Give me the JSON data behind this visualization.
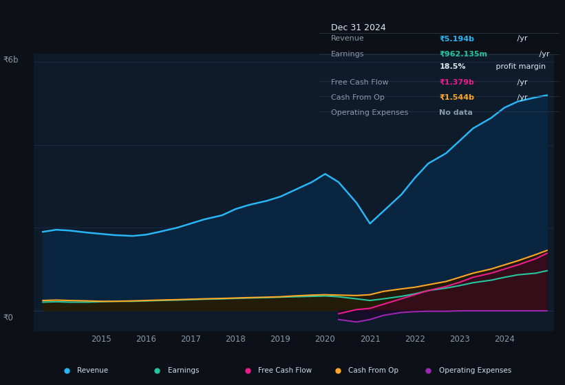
{
  "bg_color": "#0d1117",
  "plot_bg_color": "#0d1b2a",
  "grid_color": "#1e3050",
  "text_color": "#8899aa",
  "label_color": "#ccddee",
  "years": [
    2013.7,
    2014.0,
    2014.3,
    2014.7,
    2015.0,
    2015.3,
    2015.7,
    2016.0,
    2016.3,
    2016.7,
    2017.0,
    2017.3,
    2017.7,
    2018.0,
    2018.3,
    2018.7,
    2019.0,
    2019.3,
    2019.7,
    2020.0,
    2020.3,
    2020.7,
    2021.0,
    2021.3,
    2021.7,
    2022.0,
    2022.3,
    2022.7,
    2023.0,
    2023.3,
    2023.7,
    2024.0,
    2024.3,
    2024.7,
    2024.95
  ],
  "revenue": [
    1.9,
    1.95,
    1.93,
    1.88,
    1.85,
    1.82,
    1.8,
    1.83,
    1.9,
    2.0,
    2.1,
    2.2,
    2.3,
    2.45,
    2.55,
    2.65,
    2.75,
    2.9,
    3.1,
    3.3,
    3.1,
    2.6,
    2.1,
    2.4,
    2.8,
    3.2,
    3.55,
    3.8,
    4.1,
    4.4,
    4.65,
    4.9,
    5.05,
    5.15,
    5.2
  ],
  "earnings": [
    0.2,
    0.21,
    0.2,
    0.2,
    0.21,
    0.22,
    0.22,
    0.23,
    0.24,
    0.25,
    0.26,
    0.27,
    0.28,
    0.29,
    0.3,
    0.31,
    0.32,
    0.33,
    0.34,
    0.35,
    0.33,
    0.28,
    0.24,
    0.28,
    0.34,
    0.4,
    0.48,
    0.54,
    0.6,
    0.67,
    0.73,
    0.8,
    0.86,
    0.9,
    0.96
  ],
  "cash_from_op": [
    0.24,
    0.25,
    0.24,
    0.23,
    0.22,
    0.22,
    0.23,
    0.24,
    0.25,
    0.26,
    0.27,
    0.28,
    0.29,
    0.3,
    0.31,
    0.32,
    0.33,
    0.35,
    0.37,
    0.38,
    0.37,
    0.36,
    0.38,
    0.46,
    0.52,
    0.56,
    0.62,
    0.7,
    0.8,
    0.9,
    1.0,
    1.1,
    1.2,
    1.35,
    1.45
  ],
  "free_cash_flow": [
    null,
    null,
    null,
    null,
    null,
    null,
    null,
    null,
    null,
    null,
    null,
    null,
    null,
    null,
    null,
    null,
    null,
    null,
    null,
    null,
    -0.08,
    0.02,
    0.05,
    0.15,
    0.28,
    0.38,
    0.48,
    0.58,
    0.68,
    0.8,
    0.9,
    1.0,
    1.1,
    1.25,
    1.38
  ],
  "op_expenses": [
    null,
    null,
    null,
    null,
    null,
    null,
    null,
    null,
    null,
    null,
    null,
    null,
    null,
    null,
    null,
    null,
    null,
    null,
    null,
    null,
    -0.22,
    -0.28,
    -0.22,
    -0.12,
    -0.05,
    -0.03,
    -0.02,
    -0.02,
    -0.01,
    -0.01,
    -0.01,
    -0.01,
    -0.01,
    -0.01,
    -0.01
  ],
  "revenue_color": "#29b6f6",
  "earnings_color": "#26c6a0",
  "fcf_color": "#e91e8c",
  "cfop_color": "#ffa726",
  "opex_color": "#9c27b0",
  "ylim_min": -0.5,
  "ylim_max": 6.2,
  "xlim_min": 2013.5,
  "xlim_max": 2025.1,
  "xtick_positions": [
    2015,
    2016,
    2017,
    2018,
    2019,
    2020,
    2021,
    2022,
    2023,
    2024
  ],
  "xtick_labels": [
    "2015",
    "2016",
    "2017",
    "2018",
    "2019",
    "2020",
    "2021",
    "2022",
    "2023",
    "2024"
  ],
  "y6b_label": "₹6b",
  "y0_label": "₹0",
  "tooltip_bg": "#080d14",
  "tooltip_border": "#2a3a4a",
  "tooltip_title": "Dec 31 2024",
  "tooltip_title_color": "#e0eaf5",
  "tooltip_label_color": "#8899aa",
  "legend_bg": "#131e2d",
  "legend_border": "#2a3a4a"
}
